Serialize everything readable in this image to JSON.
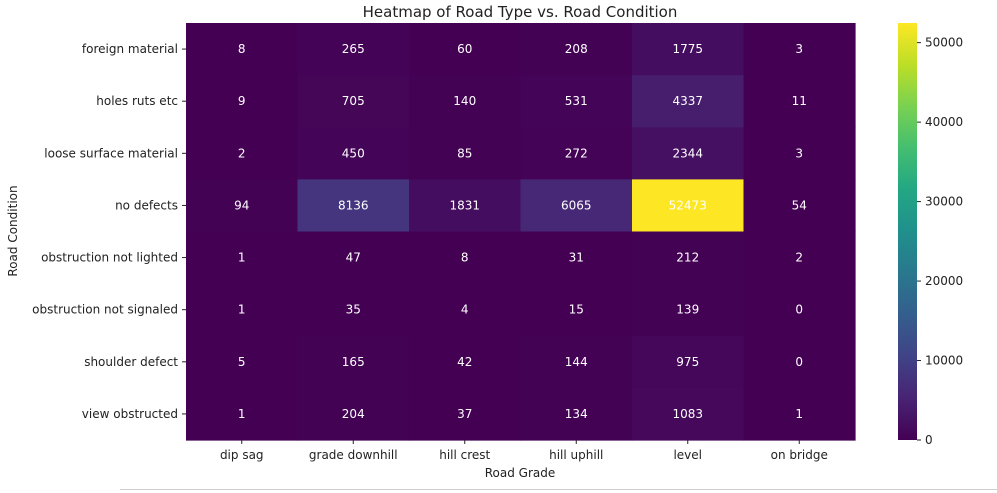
{
  "chart_data": {
    "type": "heatmap",
    "title": "Heatmap of Road Type vs. Road Condition",
    "xlabel": "Road Grade",
    "ylabel": "Road Condition",
    "x_categories": [
      "dip sag",
      "grade downhill",
      "hill crest",
      "hill uphill",
      "level",
      "on bridge"
    ],
    "y_categories": [
      "foreign material",
      "holes ruts etc",
      "loose surface material",
      "no defects",
      "obstruction not lighted",
      "obstruction not signaled",
      "shoulder defect",
      "view obstructed"
    ],
    "values": [
      [
        8,
        265,
        60,
        208,
        1775,
        3
      ],
      [
        9,
        705,
        140,
        531,
        4337,
        11
      ],
      [
        2,
        450,
        85,
        272,
        2344,
        3
      ],
      [
        94,
        8136,
        1831,
        6065,
        52473,
        54
      ],
      [
        1,
        47,
        8,
        31,
        212,
        2
      ],
      [
        1,
        35,
        4,
        15,
        139,
        0
      ],
      [
        5,
        165,
        42,
        144,
        975,
        0
      ],
      [
        1,
        204,
        37,
        134,
        1083,
        1
      ]
    ],
    "colormap": "viridis",
    "colorbar": {
      "min": 0,
      "max": 52473,
      "ticks": [
        0,
        10000,
        20000,
        30000,
        40000,
        50000
      ]
    },
    "annot_color": "#ffffff"
  }
}
